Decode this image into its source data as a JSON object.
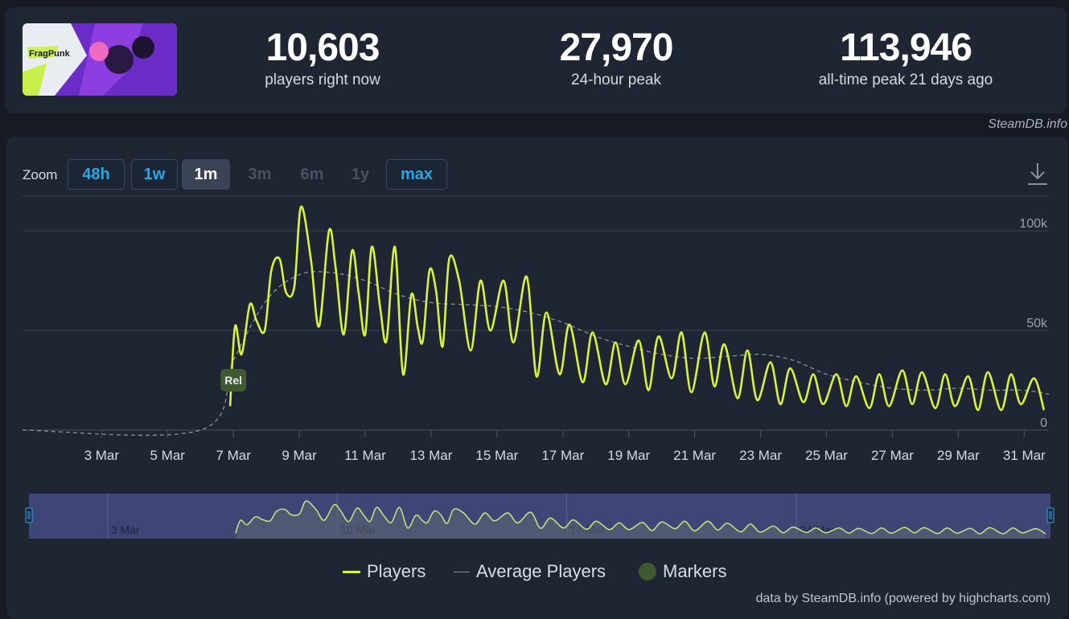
{
  "stats": [
    {
      "value": "10,603",
      "label": "players right now"
    },
    {
      "value": "27,970",
      "label": "24-hour peak"
    },
    {
      "value": "113,946",
      "label": "all-time peak 21 days ago"
    }
  ],
  "game_logo_text": "FragPunk",
  "site_credit": "SteamDB.info",
  "zoom": {
    "label": "Zoom",
    "buttons": [
      {
        "label": "48h",
        "state": "enabled"
      },
      {
        "label": "1w",
        "state": "enabled"
      },
      {
        "label": "1m",
        "state": "active"
      },
      {
        "label": "3m",
        "state": "disabled"
      },
      {
        "label": "6m",
        "state": "disabled"
      },
      {
        "label": "1y",
        "state": "disabled"
      },
      {
        "label": "max",
        "state": "enabled"
      }
    ]
  },
  "icons": {
    "download": "download-icon"
  },
  "colors": {
    "players": "#d6f53a",
    "average": "#8a8f98",
    "marker": "#3f5a30",
    "navigator_bg": "#3d4677",
    "button_blue": "#29a8e6"
  },
  "chart_data": {
    "type": "line",
    "x_tick_labels": [
      "3 Mar",
      "5 Mar",
      "7 Mar",
      "9 Mar",
      "11 Mar",
      "13 Mar",
      "15 Mar",
      "17 Mar",
      "19 Mar",
      "21 Mar",
      "23 Mar",
      "25 Mar",
      "27 Mar",
      "29 Mar",
      "31 Mar"
    ],
    "y_tick_labels": [
      "0",
      "50k",
      "100k"
    ],
    "ylim": [
      0,
      115000
    ],
    "xlim": [
      0.6,
      31.75
    ],
    "grid": true,
    "legend": "bottom-center",
    "series": [
      {
        "name": "Players",
        "x": [
          6.9,
          7.05,
          7.25,
          7.5,
          7.7,
          7.95,
          8.15,
          8.4,
          8.6,
          8.85,
          9.05,
          9.35,
          9.6,
          9.9,
          10.1,
          10.35,
          10.6,
          10.8,
          11.0,
          11.2,
          11.45,
          11.65,
          11.9,
          12.15,
          12.4,
          12.6,
          12.75,
          12.95,
          13.15,
          13.35,
          13.55,
          13.85,
          14.2,
          14.5,
          14.8,
          15.2,
          15.5,
          15.9,
          16.2,
          16.5,
          16.9,
          17.2,
          17.6,
          17.9,
          18.3,
          18.6,
          18.9,
          19.3,
          19.6,
          19.9,
          20.3,
          20.6,
          20.9,
          21.3,
          21.6,
          21.9,
          22.3,
          22.6,
          22.9,
          23.3,
          23.6,
          23.9,
          24.3,
          24.6,
          24.9,
          25.3,
          25.6,
          25.9,
          26.3,
          26.6,
          26.9,
          27.3,
          27.6,
          27.9,
          28.3,
          28.6,
          28.9,
          29.3,
          29.6,
          29.9,
          30.3,
          30.6,
          30.9,
          31.3,
          31.6
        ],
        "values": [
          12000,
          52000,
          38000,
          63000,
          55000,
          50000,
          80000,
          86000,
          69000,
          72000,
          112000,
          86000,
          52000,
          100000,
          82000,
          48000,
          90000,
          69000,
          48000,
          92000,
          62000,
          45000,
          92000,
          28000,
          68000,
          51000,
          45000,
          80000,
          70000,
          42000,
          86000,
          75000,
          40000,
          75000,
          50000,
          75000,
          44000,
          77000,
          27000,
          59000,
          28000,
          53000,
          24000,
          49000,
          23000,
          44000,
          23000,
          45000,
          20000,
          47000,
          26000,
          49000,
          19000,
          49000,
          22000,
          43000,
          16000,
          40000,
          15000,
          34000,
          13000,
          31000,
          14000,
          28000,
          13000,
          28000,
          12000,
          27000,
          11000,
          28000,
          12000,
          30000,
          13000,
          29000,
          11000,
          28000,
          12000,
          27000,
          10000,
          29000,
          10000,
          28000,
          13000,
          26000,
          10000
        ]
      },
      {
        "name": "Average Players",
        "x": [
          0.6,
          6.0,
          7.0,
          8.0,
          9.0,
          10.0,
          11.0,
          12.0,
          13.0,
          14.0,
          15.0,
          16.0,
          17.0,
          18.0,
          19.0,
          20.0,
          21.0,
          22.0,
          23.0,
          24.0,
          25.0,
          26.0,
          27.0,
          28.0,
          29.0,
          30.0,
          31.0,
          31.75
        ],
        "values": [
          0,
          0,
          35000,
          65000,
          78000,
          79000,
          75000,
          68000,
          64000,
          63000,
          62000,
          59000,
          54000,
          47000,
          42000,
          38000,
          36000,
          37000,
          38000,
          35000,
          28000,
          24000,
          21000,
          20000,
          21000,
          20000,
          20000,
          18000
        ]
      },
      {
        "name": "Markers",
        "points": [
          {
            "x": 7.0,
            "value": 25000,
            "label": "Rel"
          }
        ]
      }
    ],
    "navigator_labels": [
      "3 Mar",
      "10 Mar",
      "17 Mar",
      "24 Mar"
    ]
  },
  "legend_items": [
    "Players",
    "Average Players",
    "Markers"
  ],
  "footer_credit": "data by SteamDB.info (powered by highcharts.com)"
}
